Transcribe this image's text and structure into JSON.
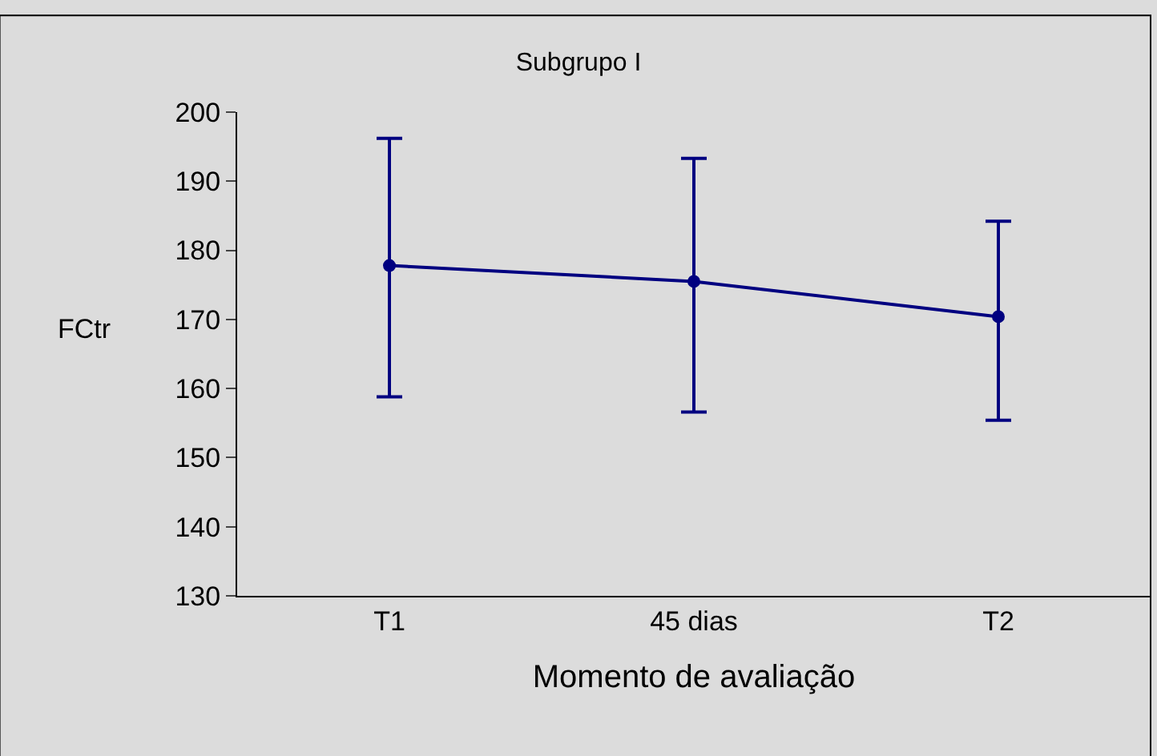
{
  "chart_data": {
    "type": "line",
    "title": "Subgrupo I",
    "xlabel": "Momento de avaliação",
    "ylabel": "FCtr",
    "categories": [
      "T1",
      "45 dias",
      "T2"
    ],
    "series": [
      {
        "color": "#000080",
        "values": [
          177.8,
          175.5,
          170.4
        ],
        "errors": [
          [
            158.8,
            196.2
          ],
          [
            156.6,
            193.3
          ],
          [
            155.4,
            184.2
          ]
        ]
      }
    ],
    "ylim": [
      130,
      200
    ],
    "yticks": [
      130,
      140,
      150,
      160,
      170,
      180,
      190,
      200
    ],
    "grid": false,
    "legend": false,
    "marker": "circle",
    "line_style": "solid"
  }
}
